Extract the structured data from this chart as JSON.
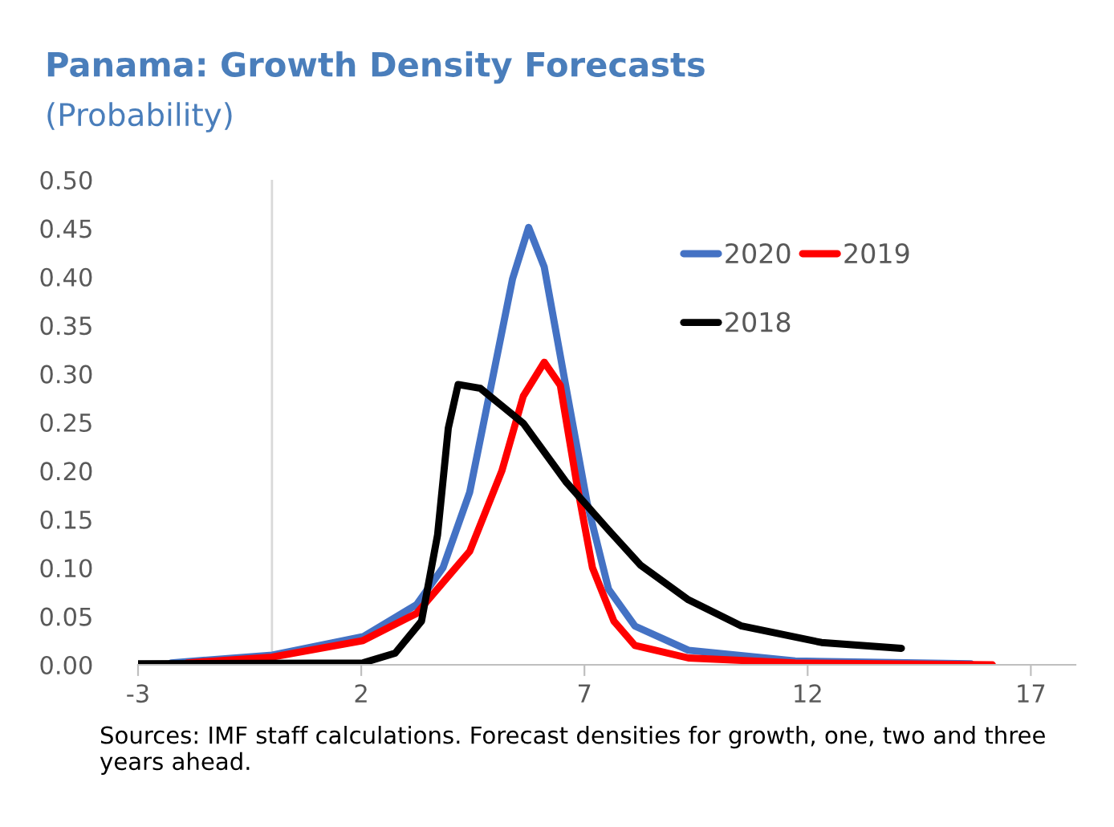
{
  "chart_data": {
    "type": "line",
    "title": "Panama: Growth Density Forecasts",
    "subtitle": "(Probability)",
    "annotations": [
      "Sources: IMF staff calculations. Forecast densities for growth, one, two and three years ahead."
    ],
    "xlim": [
      -3,
      18
    ],
    "xticks": [
      -3,
      2,
      7,
      12,
      17
    ],
    "ylim": [
      0,
      0.5
    ],
    "yticks": [
      {
        "value": 0,
        "label": "0.00"
      },
      {
        "value": 0.05,
        "label": "0.05"
      },
      {
        "value": 0.1,
        "label": "0.10"
      },
      {
        "value": 0.15,
        "label": "0.15"
      },
      {
        "value": 0.2,
        "label": "0.20"
      },
      {
        "value": 0.25,
        "label": "0.25"
      },
      {
        "value": 0.3,
        "label": "0.30"
      },
      {
        "value": 0.35,
        "label": "0.35"
      },
      {
        "value": 0.4,
        "label": "0.40"
      },
      {
        "value": 0.45,
        "label": "0.45"
      },
      {
        "value": 0.5,
        "label": "0.50"
      }
    ],
    "grid": false,
    "legend": "top right",
    "marker": "none",
    "line_style": "solid",
    "series": [
      {
        "name": "2020",
        "color": "#4472c4",
        "x": [
          -2.26,
          0.01,
          2.04,
          3.24,
          3.83,
          4.43,
          4.91,
          5.39,
          5.75,
          6.1,
          6.58,
          7.06,
          7.54,
          8.13,
          9.33,
          11.72,
          15.66
        ],
        "values": [
          0.002,
          0.01,
          0.029,
          0.062,
          0.1,
          0.178,
          0.288,
          0.398,
          0.451,
          0.41,
          0.288,
          0.167,
          0.078,
          0.04,
          0.015,
          0.004,
          0.001
        ]
      },
      {
        "name": "2019",
        "color": "#ff0000",
        "x": [
          -1.9,
          0,
          2.04,
          3.24,
          4.43,
          5.15,
          5.63,
          6.1,
          6.46,
          6.82,
          7.18,
          7.66,
          8.13,
          9.33,
          11.72,
          16.14
        ],
        "values": [
          0.002,
          0.008,
          0.025,
          0.053,
          0.117,
          0.2,
          0.277,
          0.312,
          0.288,
          0.189,
          0.1,
          0.045,
          0.02,
          0.007,
          0.002,
          0
        ]
      },
      {
        "name": "2018",
        "color": "#000000",
        "x": [
          -3,
          2.04,
          2.76,
          3.35,
          3.71,
          3.95,
          4.17,
          4.67,
          5.63,
          6.58,
          7.54,
          8.25,
          9.33,
          10.52,
          12.31,
          14.1
        ],
        "values": [
          0.001,
          0.002,
          0.012,
          0.045,
          0.134,
          0.244,
          0.289,
          0.285,
          0.249,
          0.189,
          0.139,
          0.103,
          0.067,
          0.04,
          0.023,
          0.017
        ]
      }
    ]
  }
}
